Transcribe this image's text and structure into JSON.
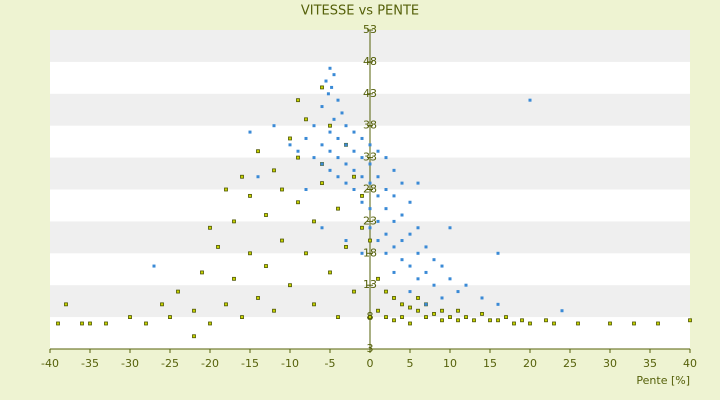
{
  "chart_data": {
    "type": "scatter",
    "title": "VITESSE vs PENTE",
    "x_label": "Pente [%]",
    "xlim": [
      -40,
      40
    ],
    "xticks": [
      -40,
      -35,
      -30,
      -25,
      -20,
      -15,
      -10,
      -5,
      0,
      5,
      10,
      15,
      20,
      25,
      30,
      35,
      40
    ],
    "ylim": [
      3,
      53
    ],
    "yticks": [
      3,
      8,
      13,
      18,
      23,
      28,
      33,
      38,
      43,
      48,
      53
    ],
    "grid": true,
    "series": [
      {
        "color": "#3a8ad6",
        "x": [
          -5,
          -4.5,
          -5.5,
          -4.8,
          -5.2,
          -4,
          -6,
          -3.5,
          -4.5,
          -7,
          -3,
          -5,
          -2,
          -8,
          -4,
          -1,
          -6,
          -3,
          0,
          -9,
          -5,
          -2,
          1,
          -7,
          -4,
          -1,
          2,
          -6,
          -3,
          0,
          3,
          -5,
          -2,
          1,
          -4,
          -1,
          4,
          -3,
          0,
          2,
          -2,
          1,
          3,
          -1,
          5,
          0,
          2,
          4,
          1,
          3,
          6,
          0,
          2,
          5,
          1,
          4,
          7,
          3,
          2,
          6,
          8,
          4,
          5,
          9,
          3,
          7,
          10,
          6,
          12,
          8,
          5,
          11,
          14,
          9,
          7,
          16,
          -12,
          -15,
          -10,
          -27,
          20,
          24,
          10,
          16,
          6,
          -14,
          -8,
          -6,
          -3,
          -1
        ],
        "values": [
          47,
          46,
          45,
          44,
          43,
          42,
          41,
          40,
          39,
          38,
          38,
          37,
          37,
          36,
          36,
          36,
          35,
          35,
          35,
          34,
          34,
          34,
          34,
          33,
          33,
          33,
          33,
          32,
          32,
          32,
          31,
          31,
          31,
          30,
          30,
          30,
          29,
          29,
          29,
          28,
          28,
          27,
          27,
          26,
          26,
          25,
          25,
          24,
          23,
          23,
          22,
          22,
          21,
          21,
          20,
          20,
          19,
          19,
          18,
          18,
          17,
          17,
          16,
          16,
          15,
          15,
          14,
          14,
          13,
          13,
          12,
          12,
          11,
          11,
          10,
          10,
          38,
          37,
          35,
          16,
          42,
          9,
          22,
          18,
          29,
          30,
          28,
          22,
          20,
          18
        ]
      },
      {
        "color": "#c8d400",
        "x": [
          -38,
          -39,
          -35,
          -33,
          -30,
          -28,
          -26,
          -25,
          -24,
          -22,
          -21,
          -20,
          -19,
          -18,
          -17,
          -17,
          -16,
          -16,
          -15,
          -15,
          -14,
          -14,
          -13,
          -13,
          -12,
          -12,
          -11,
          -11,
          -10,
          -10,
          -9,
          -9,
          -8,
          -8,
          -7,
          -7,
          -6,
          -6,
          -5,
          -5,
          -4,
          -4,
          -3,
          -3,
          -2,
          -2,
          -1,
          -1,
          0,
          0,
          1,
          1,
          2,
          2,
          3,
          3,
          4,
          4,
          5,
          5,
          6,
          6,
          7,
          7,
          8,
          9,
          9,
          10,
          11,
          11,
          12,
          13,
          14,
          15,
          16,
          17,
          18,
          19,
          20,
          22,
          23,
          26,
          30,
          33,
          36,
          40,
          -20,
          -18,
          -9,
          -6,
          -22,
          -36
        ],
        "values": [
          10,
          7,
          7,
          7,
          8,
          7,
          10,
          8,
          12,
          9,
          15,
          7,
          19,
          10,
          23,
          14,
          30,
          8,
          27,
          18,
          34,
          11,
          24,
          16,
          31,
          9,
          28,
          20,
          36,
          13,
          26,
          33,
          18,
          39,
          23,
          10,
          32,
          29,
          15,
          38,
          25,
          8,
          35,
          19,
          30,
          12,
          27,
          22,
          20,
          8,
          14,
          9,
          12,
          8,
          11,
          7.5,
          10,
          8,
          9.5,
          7,
          9,
          11,
          8,
          10,
          8.5,
          7.5,
          9,
          8,
          7.5,
          9,
          8,
          7.5,
          8.5,
          7.5,
          7.5,
          8,
          7,
          7.5,
          7,
          7.5,
          7,
          7,
          7,
          7,
          7,
          7.5,
          22,
          28,
          42,
          44,
          5,
          7
        ]
      }
    ]
  }
}
